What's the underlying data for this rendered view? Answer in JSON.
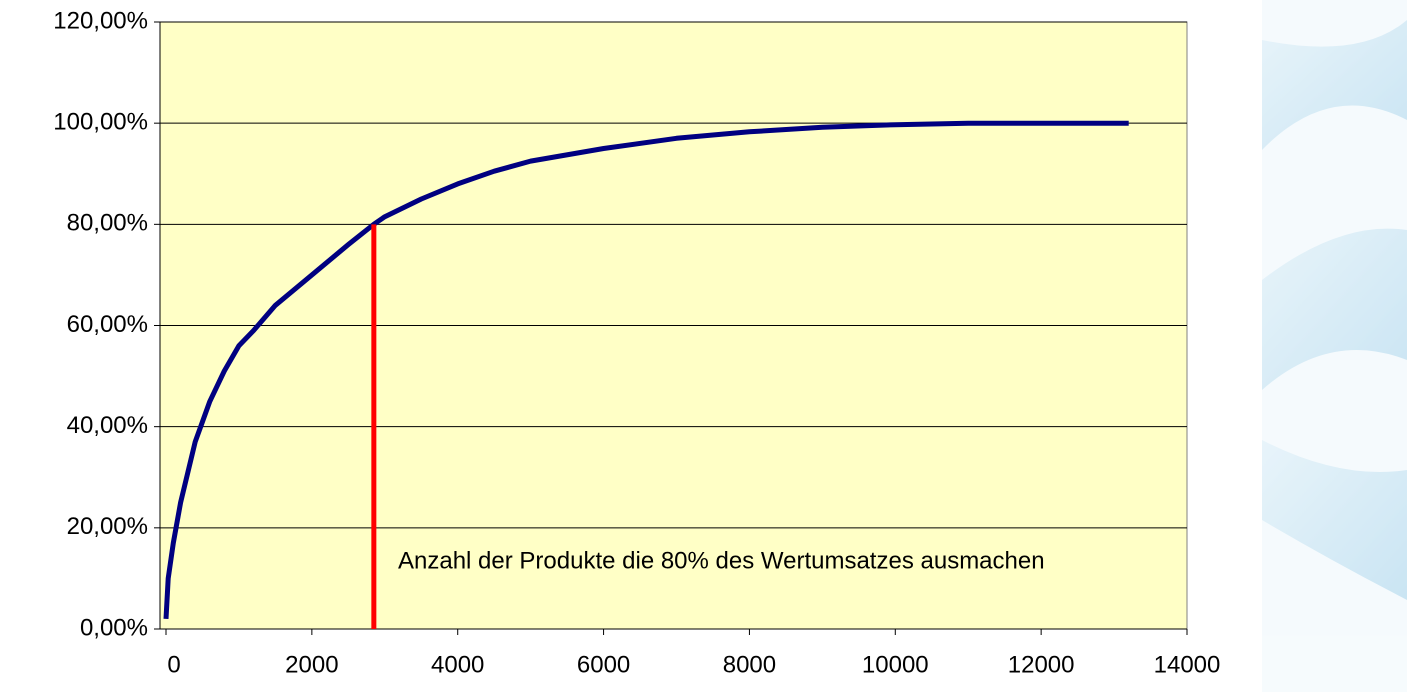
{
  "chart_data": {
    "type": "line",
    "x": [
      0,
      30,
      100,
      200,
      300,
      400,
      500,
      600,
      800,
      1000,
      1200,
      1500,
      2000,
      2500,
      2850,
      3000,
      3500,
      4000,
      4500,
      5000,
      6000,
      7000,
      8000,
      9000,
      10000,
      11000,
      13200
    ],
    "series": [
      {
        "color": "#000080",
        "values": [
          2,
          10,
          17,
          25,
          31,
          37,
          41,
          45,
          51,
          56,
          59,
          64,
          70,
          76,
          80,
          81.5,
          85,
          88,
          90.5,
          92.5,
          95,
          97,
          98.3,
          99.2,
          99.7,
          100,
          100
        ]
      }
    ],
    "xlim": [
      0,
      14000
    ],
    "xticks": [
      0,
      2000,
      4000,
      6000,
      8000,
      10000,
      12000,
      14000
    ],
    "ylim": [
      0,
      120
    ],
    "yticks": [
      {
        "value": 0,
        "label": "0,00%"
      },
      {
        "value": 20,
        "label": "20,00%"
      },
      {
        "value": 40,
        "label": "40,00%"
      },
      {
        "value": 60,
        "label": "60,00%"
      },
      {
        "value": 80,
        "label": "80,00%"
      },
      {
        "value": 100,
        "label": "100,00%"
      },
      {
        "value": 120,
        "label": "120,00%"
      }
    ],
    "grid": true,
    "plot_background": "#ffffc6",
    "reference_line": {
      "x": 2850,
      "y": 80,
      "color": "#ff0000"
    },
    "annotation": "Anzahl der Produkte die 80% des Wertumsatzes ausmachen"
  }
}
